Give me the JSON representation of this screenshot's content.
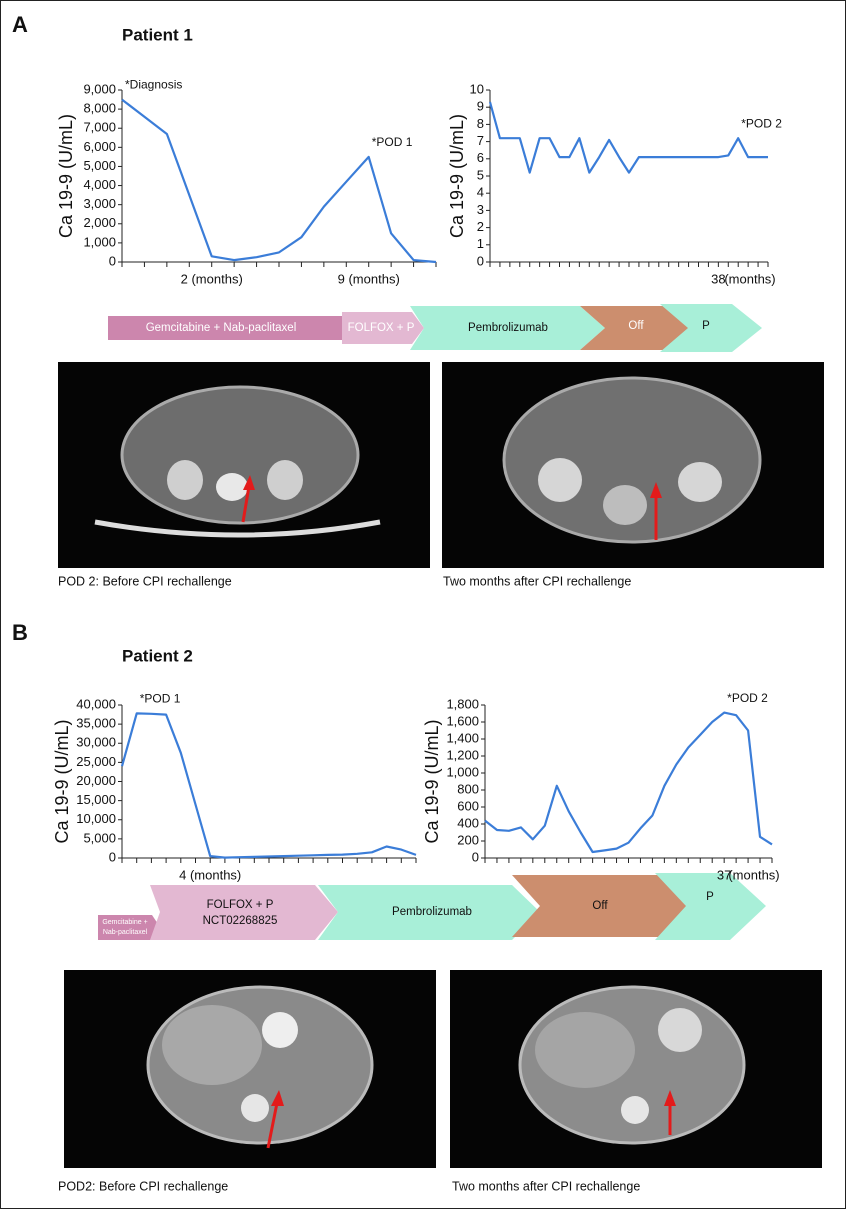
{
  "chart_data": [
    {
      "type": "line",
      "y_label": "Ca 19-9 (U/mL)",
      "color": "#3b7dd8",
      "categories": [
        null,
        null,
        null,
        null,
        "2 (months)",
        null,
        null,
        null,
        null,
        null,
        null,
        "9 (months)",
        null,
        null,
        null
      ],
      "values": [
        8500,
        7600,
        6700,
        3500,
        300,
        100,
        250,
        500,
        1300,
        2900,
        4200,
        5500,
        1500,
        100,
        0
      ],
      "annotations": [
        "*Diagnosis",
        null,
        null,
        null,
        null,
        null,
        null,
        null,
        null,
        null,
        null,
        "*POD 1",
        null,
        null,
        null
      ],
      "ylim": [
        0,
        9000
      ],
      "yticks": [
        0,
        {
          "value": 1000,
          "label": "1,000"
        },
        {
          "value": 2000,
          "label": "2,000"
        },
        {
          "value": 3000,
          "label": "3,000"
        },
        {
          "value": 4000,
          "label": "4,000"
        },
        {
          "value": 5000,
          "label": "5,000"
        },
        {
          "value": 6000,
          "label": "6,000"
        },
        {
          "value": 7000,
          "label": "7,000"
        },
        {
          "value": 8000,
          "label": "8,000"
        },
        {
          "value": 9000,
          "label": "9,000"
        }
      ]
    },
    {
      "type": "line",
      "y_label": "Ca 19-9 (U/mL)",
      "color": "#3b7dd8",
      "x_label": "(months)",
      "categories": [
        null,
        null,
        null,
        null,
        null,
        null,
        null,
        null,
        null,
        null,
        null,
        null,
        null,
        null,
        null,
        null,
        null,
        null,
        null,
        null,
        null,
        null,
        null,
        "38",
        null,
        null,
        null,
        null,
        null
      ],
      "values": [
        9.3,
        7.2,
        7.2,
        7.2,
        5.2,
        7.2,
        7.2,
        6.1,
        6.1,
        7.2,
        5.2,
        6.1,
        7.1,
        6.1,
        5.2,
        6.1,
        6.1,
        6.1,
        6.1,
        6.1,
        6.1,
        6.1,
        6.1,
        6.1,
        6.2,
        7.2,
        6.1,
        6.1,
        6.1
      ],
      "annotations": [
        null,
        null,
        null,
        null,
        null,
        null,
        null,
        null,
        null,
        null,
        null,
        null,
        null,
        null,
        null,
        null,
        null,
        null,
        null,
        null,
        null,
        null,
        null,
        null,
        null,
        "*POD 2",
        null,
        null,
        null
      ],
      "ylim": [
        0,
        10
      ],
      "yticks": [
        0,
        1,
        2,
        3,
        4,
        5,
        6,
        7,
        8,
        9,
        10
      ]
    },
    {
      "type": "line",
      "y_label": "Ca 19-9 (U/mL)",
      "color": "#3b7dd8",
      "categories": [
        null,
        null,
        null,
        null,
        null,
        null,
        "4 (months)",
        null,
        null,
        null,
        null,
        null,
        null,
        null,
        null,
        null,
        null,
        null,
        null,
        null,
        null
      ],
      "values": [
        24000,
        37800,
        37700,
        37500,
        27500,
        14000,
        500,
        100,
        200,
        300,
        400,
        500,
        600,
        700,
        800,
        900,
        1100,
        1500,
        3000,
        2200,
        800
      ],
      "annotations": [
        null,
        "*POD 1",
        null,
        null,
        null,
        null,
        null,
        null,
        null,
        null,
        null,
        null,
        null,
        null,
        null,
        null,
        null,
        null,
        null,
        null,
        null
      ],
      "ylim": [
        0,
        40000
      ],
      "yticks": [
        0,
        {
          "value": 5000,
          "label": "5,000"
        },
        {
          "value": 10000,
          "label": "10,000"
        },
        {
          "value": 15000,
          "label": "15,000"
        },
        {
          "value": 20000,
          "label": "20,000"
        },
        {
          "value": 25000,
          "label": "25,000"
        },
        {
          "value": 30000,
          "label": "30,000"
        },
        {
          "value": 35000,
          "label": "35,000"
        },
        {
          "value": 40000,
          "label": "40,000"
        }
      ]
    },
    {
      "type": "line",
      "y_label": "Ca 19-9 (U/mL)",
      "color": "#3b7dd8",
      "x_label": "(months)",
      "categories": [
        null,
        null,
        null,
        null,
        null,
        null,
        null,
        null,
        null,
        null,
        null,
        null,
        null,
        null,
        null,
        null,
        null,
        null,
        null,
        null,
        "37",
        null,
        null,
        null,
        null
      ],
      "values": [
        440,
        330,
        320,
        360,
        220,
        380,
        850,
        550,
        300,
        70,
        90,
        110,
        180,
        350,
        500,
        850,
        1100,
        1300,
        1450,
        1600,
        1710,
        1680,
        1500,
        250,
        160
      ],
      "annotations": [
        null,
        null,
        null,
        null,
        null,
        null,
        null,
        null,
        null,
        null,
        null,
        null,
        null,
        null,
        null,
        null,
        null,
        null,
        null,
        null,
        "*POD 2",
        null,
        null,
        null,
        null
      ],
      "ylim": [
        0,
        1800
      ],
      "yticks": [
        0,
        200,
        400,
        600,
        800,
        {
          "value": 1000,
          "label": "1,000"
        },
        {
          "value": 1200,
          "label": "1,200"
        },
        {
          "value": 1400,
          "label": "1,400"
        },
        {
          "value": 1600,
          "label": "1,600"
        },
        {
          "value": 1800,
          "label": "1,800"
        }
      ]
    }
  ],
  "panels": [
    {
      "label": "A",
      "title": "Patient 1",
      "timeline": [
        "Gemcitabine + Nab-paclitaxel",
        "FOLFOX + P",
        "Pembrolizumab",
        "Off",
        "P"
      ],
      "captions": [
        "POD 2: Before CPI rechallenge",
        "Two months after CPI rechallenge"
      ]
    },
    {
      "label": "B",
      "title": "Patient 2",
      "timeline": [
        "Gemcitabine +",
        "Nab-paclitaxel",
        "FOLFOX + P",
        "NCT02268825",
        "Pembrolizumab",
        "Off",
        "P"
      ],
      "captions": [
        "POD2: Before CPI rechallenge",
        "Two months after CPI rechallenge"
      ]
    }
  ]
}
